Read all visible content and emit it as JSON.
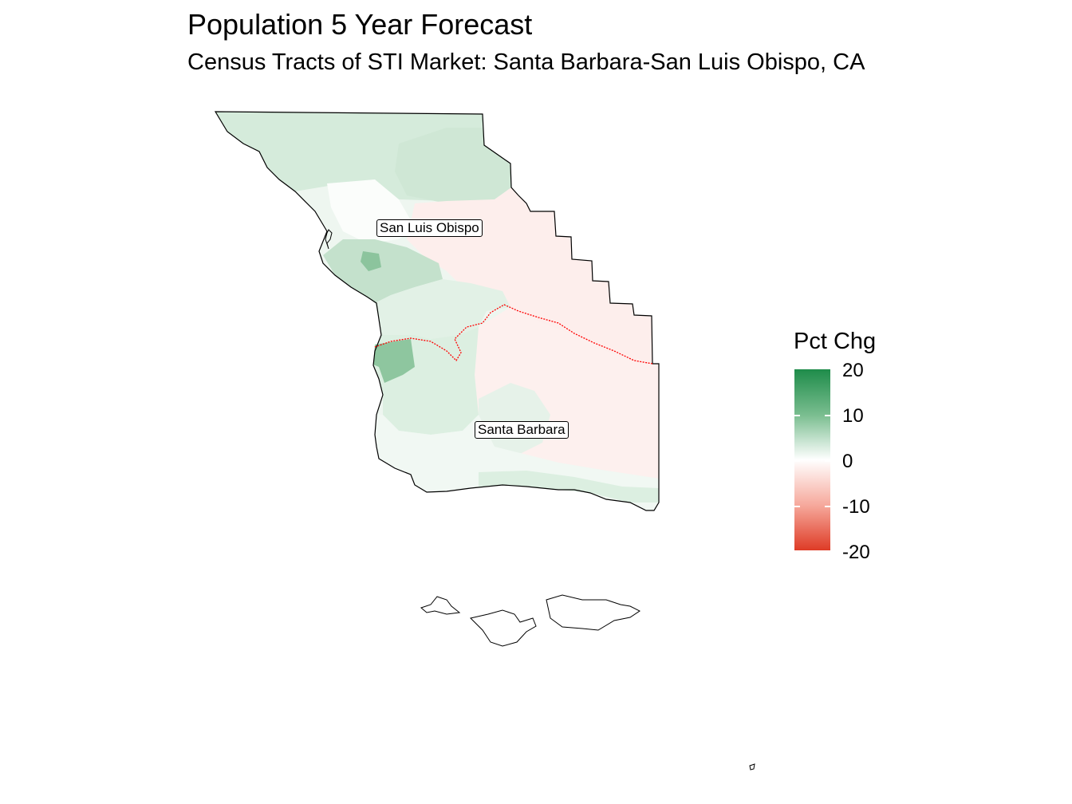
{
  "title": "Population 5 Year Forecast",
  "subtitle": "Census Tracts of STI Market: Santa Barbara-San Luis Obispo, CA",
  "legend": {
    "title": "Pct Chg",
    "ticks": [
      "20",
      "10",
      "0",
      "-10",
      "-20"
    ],
    "high_color": "#1e8c4a",
    "mid_color": "#ffffff",
    "low_color": "#de3b26"
  },
  "labels": {
    "county_north": "San Luis Obispo",
    "county_south": "Santa Barbara"
  },
  "colors": {
    "county_border": "#ff0000",
    "outline": "#000000"
  }
}
